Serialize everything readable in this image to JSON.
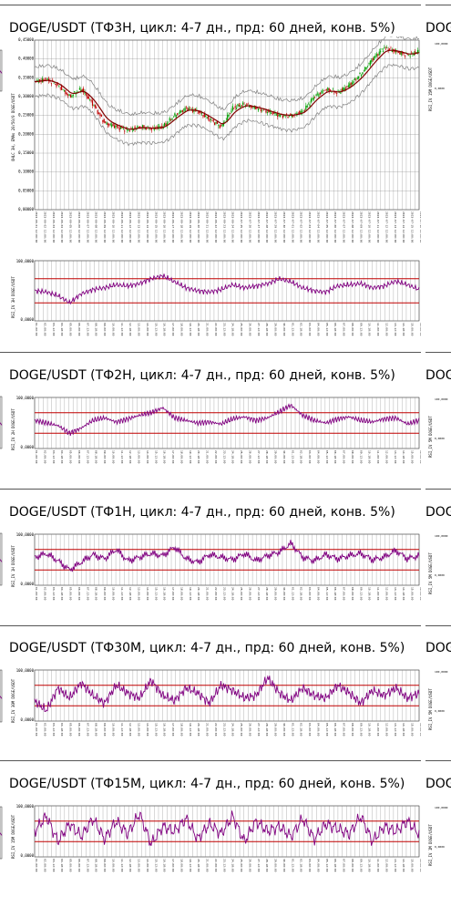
{
  "colors": {
    "rsi_line": "#800080",
    "band": "#c00000",
    "grid": "#808080",
    "bull": "#00a000",
    "bear": "#c00000",
    "ma": "#800000",
    "env": "#808080"
  },
  "chart_data": [
    {
      "id": "tf3h",
      "type": "line",
      "title": "DOGE/USDT (ТФ3Н, цикл: 4-7 дн., прд: 60 дней, конв. 5%)",
      "price": {
        "ylabel": "OHLC 3H, EMAs 20/50/0 DOGE/USDT",
        "ytick_labels": [
          "0,00000",
          "0,05000",
          "0,10000",
          "0,15000",
          "0,20000",
          "0,25000",
          "0,30000",
          "0,35000",
          "0,40000",
          "0,45000"
        ],
        "series_sample": [
          0.34,
          0.345,
          0.33,
          0.3,
          0.32,
          0.28,
          0.23,
          0.22,
          0.21,
          0.22,
          0.215,
          0.22,
          0.25,
          0.27,
          0.26,
          0.24,
          0.22,
          0.27,
          0.28,
          0.27,
          0.26,
          0.25,
          0.25,
          0.26,
          0.3,
          0.32,
          0.31,
          0.33,
          0.36,
          0.4,
          0.43,
          0.42,
          0.41,
          0.42
        ]
      },
      "rsi": {
        "ylabel": "RSI_IV 3H DOGE/USDT",
        "ytick_top": "100,0000",
        "ytick_bottom": "0,0000",
        "bands": [
          70,
          30
        ],
        "series_sample": [
          50,
          48,
          42,
          30,
          45,
          52,
          55,
          60,
          58,
          62,
          70,
          75,
          65,
          55,
          50,
          48,
          52,
          60,
          55,
          58,
          62,
          70,
          65,
          55,
          50,
          48,
          58,
          60,
          62,
          55,
          58,
          66,
          60,
          52
        ]
      }
    },
    {
      "id": "tf2h",
      "type": "line",
      "title": "DOGE/USDT (ТФ2Н, цикл: 4-7 дн., прд: 60 дней, конв. 5%)",
      "rsi": {
        "ylabel": "RSI_IV 2H DOGE/USDT",
        "ytick_top": "100,0000",
        "ytick_bottom": "0,0000",
        "bands": [
          70,
          30
        ],
        "series_sample": [
          55,
          50,
          45,
          30,
          40,
          55,
          60,
          52,
          58,
          65,
          70,
          80,
          60,
          55,
          50,
          52,
          48,
          58,
          62,
          55,
          60,
          72,
          85,
          65,
          55,
          50,
          58,
          62,
          55,
          52,
          58,
          60,
          48,
          55
        ]
      }
    },
    {
      "id": "tf1h",
      "type": "line",
      "title": "DOGE/USDT (ТФ1Н, цикл: 4-7 дн., прд: 60 дней, конв. 5%)",
      "rsi": {
        "ylabel": "RSI_IV 1H DOGE/USDT",
        "ytick_top": "100,0000",
        "ytick_bottom": "0,0000",
        "bands": [
          70,
          30
        ],
        "series_sample": [
          55,
          62,
          48,
          30,
          45,
          60,
          52,
          70,
          48,
          55,
          62,
          58,
          75,
          52,
          45,
          60,
          55,
          50,
          62,
          48,
          58,
          65,
          82,
          55,
          48,
          60,
          52,
          58,
          62,
          50,
          55,
          68,
          52,
          58
        ]
      }
    },
    {
      "id": "tf30m",
      "type": "line",
      "title": "DOGE/USDT (ТФ30М, цикл: 4-7 дн., прд: 60 дней, конв. 5%)",
      "rsi": {
        "ylabel": "RSI_IV 30M DOGE/USDT",
        "ytick_top": "100,0000",
        "ytick_bottom": "0,0000",
        "bands": [
          70,
          30
        ],
        "series_sample": [
          40,
          20,
          65,
          45,
          75,
          50,
          35,
          70,
          55,
          45,
          80,
          50,
          40,
          65,
          55,
          35,
          70,
          60,
          45,
          50,
          85,
          55,
          40,
          65,
          50,
          45,
          70,
          55,
          35,
          60,
          50,
          65,
          45,
          55
        ]
      }
    },
    {
      "id": "tf15m",
      "type": "line",
      "title": "DOGE/USDT (ТФ15М, цикл: 4-7 дн., прд: 60 дней, конв. 5%)",
      "rsi": {
        "ylabel": "RSI_IV 15M DOGE/USDT",
        "ytick_top": "100,0000",
        "ytick_bottom": "0,0000",
        "bands": [
          70,
          30
        ],
        "series_sample": [
          50,
          80,
          30,
          65,
          40,
          75,
          35,
          70,
          45,
          85,
          25,
          60,
          50,
          75,
          35,
          65,
          45,
          80,
          30,
          70,
          50,
          60,
          40,
          75,
          35,
          65,
          55,
          45,
          80,
          30,
          60,
          50,
          70,
          45
        ]
      }
    }
  ],
  "peek_titles": [
    "DOGE",
    "DOGE",
    "DOGE",
    "DOGE",
    "DOGE"
  ],
  "peek_ylabels": [
    "RSI_IV 15M DOGE/USDT",
    "RSI_IV 5M DOGE/USDT",
    "RSI_IV 5M DOGE/USDT",
    "RSI_IV 5M DOGE/USDT",
    "RSI_IV 1M DOGE/USDT"
  ]
}
